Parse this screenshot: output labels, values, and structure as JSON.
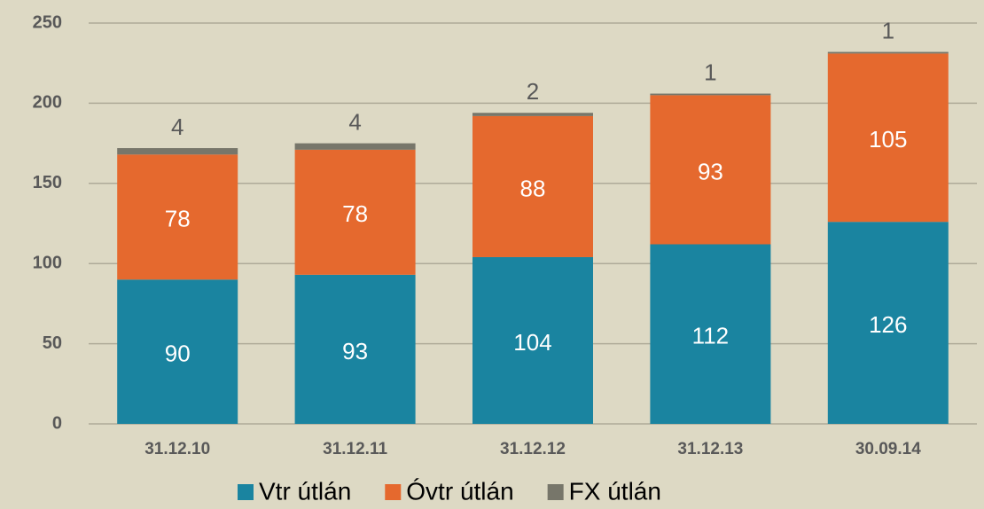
{
  "chart_data": {
    "type": "stacked_bar",
    "categories": [
      "31.12.10",
      "31.12.11",
      "31.12.12",
      "31.12.13",
      "30.09.14"
    ],
    "series": [
      {
        "name": "Vtr útlán",
        "color": "#1a84a0",
        "values": [
          90,
          93,
          104,
          112,
          126
        ]
      },
      {
        "name": "Óvtr útlán",
        "color": "#e5692e",
        "values": [
          78,
          78,
          88,
          93,
          105
        ]
      },
      {
        "name": "FX útlán",
        "color": "#77766a",
        "values": [
          4,
          4,
          2,
          1,
          1
        ]
      }
    ],
    "ylim": [
      0,
      250
    ],
    "yticks": [
      0,
      50,
      100,
      150,
      200,
      250
    ],
    "grid": true,
    "legend": "bottom"
  }
}
